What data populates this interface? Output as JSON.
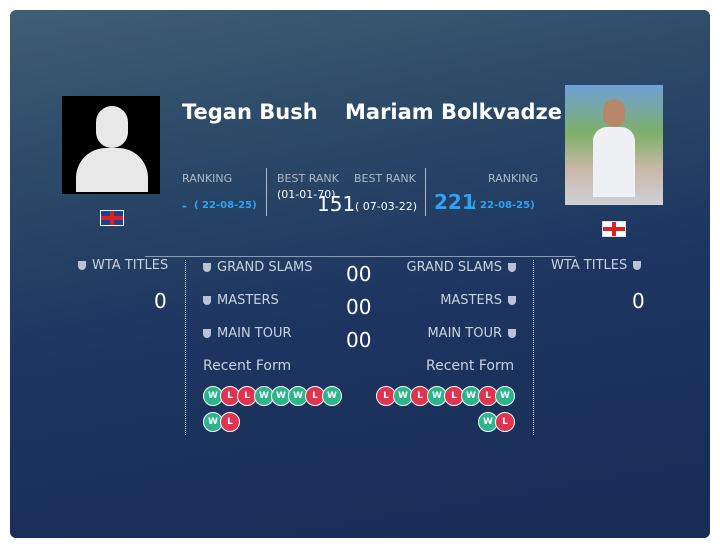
{
  "players": [
    {
      "name": "Tegan Bush",
      "ranking_label": "RANKING",
      "ranking": "-",
      "ranking_date": "( 22-08-25)",
      "best_rank_label": "BEST RANK",
      "best_rank_date": "(01-01-70)",
      "titles_label": "WTA TITLES",
      "titles": 0,
      "form": [
        "W",
        "L",
        "L",
        "W",
        "W",
        "W",
        "L",
        "W",
        "W",
        "L"
      ]
    },
    {
      "name": "Mariam Bolkvadze",
      "ranking_label": "RANKING",
      "ranking": 221,
      "ranking_date": "( 22-08-25)",
      "best_rank_label": "BEST RANK",
      "best_rank": 151,
      "best_rank_date": "( 07-03-22)",
      "titles_label": "WTA TITLES",
      "titles": 0,
      "form": [
        "L",
        "W",
        "L",
        "W",
        "L",
        "W",
        "L",
        "W",
        "W",
        "L"
      ]
    }
  ],
  "h2h": {
    "rows": [
      {
        "label": "GRAND SLAMS",
        "value": "00"
      },
      {
        "label": "MASTERS",
        "value": "00"
      },
      {
        "label": "MAIN TOUR",
        "value": "00"
      }
    ],
    "recent_form_label": "Recent Form"
  }
}
